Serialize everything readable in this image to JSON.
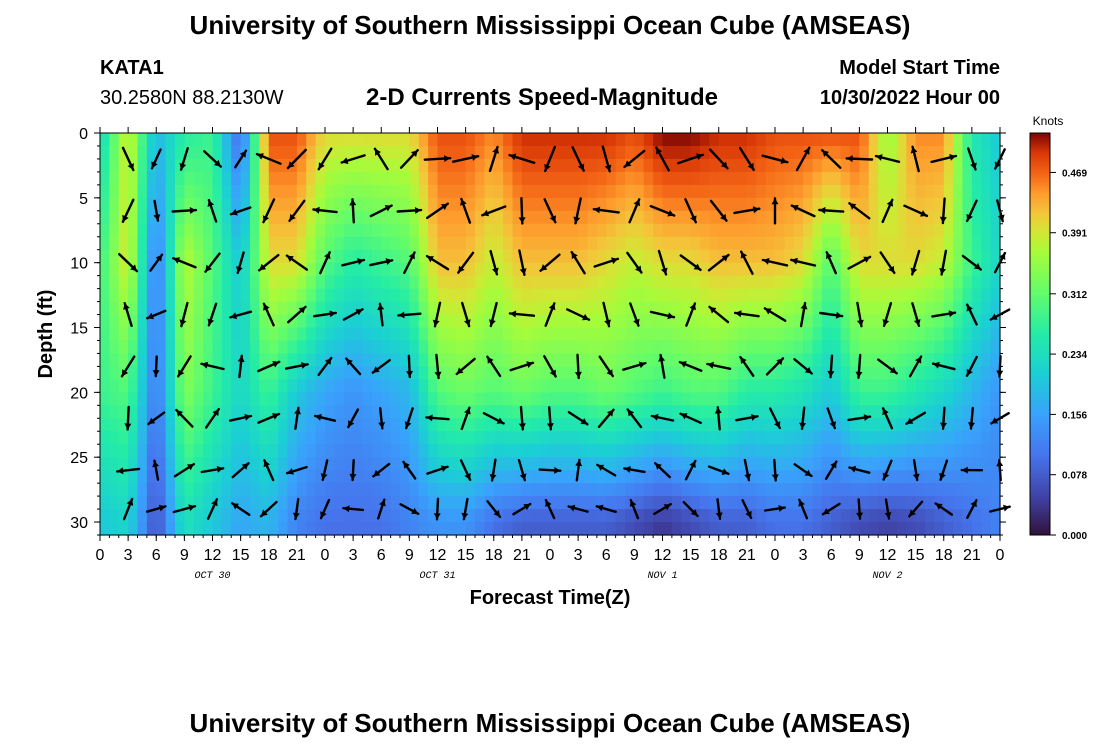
{
  "header": {
    "title": "University of Southern Mississippi Ocean Cube (AMSEAS)",
    "station_id": "KATA1",
    "station_coords": "30.2580N  88.2130W",
    "subtitle": "2-D Currents Speed-Magnitude",
    "model_start_label": "Model Start Time",
    "model_start_value": "10/30/2022 Hour 00"
  },
  "footer": {
    "title": "University of Southern Mississippi Ocean Cube (AMSEAS)"
  },
  "chart_data": {
    "type": "heatmap",
    "title": "2-D Currents Speed-Magnitude",
    "xlabel": "Forecast Time(Z)",
    "ylabel": "Depth (ft)",
    "xlim": [
      0,
      96
    ],
    "ylim": [
      31,
      0
    ],
    "x_tick_labels": [
      "0",
      "3",
      "6",
      "9",
      "12",
      "15",
      "18",
      "21",
      "0",
      "3",
      "6",
      "9",
      "12",
      "15",
      "18",
      "21",
      "0",
      "3",
      "6",
      "9",
      "12",
      "15",
      "18",
      "21",
      "0",
      "3",
      "6",
      "9",
      "12",
      "15",
      "18",
      "21",
      "0"
    ],
    "y_ticks": [
      0,
      5,
      10,
      15,
      20,
      25,
      30
    ],
    "y_tick_labels": [
      "0",
      "5",
      "10",
      "15",
      "20",
      "25",
      "30"
    ],
    "date_labels": [
      {
        "text": "OCT 30",
        "hour": 12
      },
      {
        "text": "OCT 31",
        "hour": 36
      },
      {
        "text": "NOV 1",
        "hour": 60
      },
      {
        "text": "NOV 2",
        "hour": 84
      }
    ],
    "colorbar": {
      "label": "Knots",
      "min": 0.0,
      "max": 0.52,
      "ticks": [
        0.0,
        0.078,
        0.156,
        0.234,
        0.312,
        0.391,
        0.469
      ],
      "tick_labels": [
        "0.000",
        "0.078",
        "0.156",
        "0.234",
        "0.312",
        "0.391",
        "0.469"
      ]
    },
    "speed_profiles": {
      "time_hours": [
        0,
        3,
        6,
        9,
        12,
        15,
        18,
        21,
        24,
        27,
        30,
        33,
        36,
        39,
        42,
        45,
        48,
        51,
        54,
        57,
        60,
        63,
        66,
        69,
        72,
        75,
        78,
        81,
        84,
        87,
        90,
        93,
        96
      ],
      "depth_ft": [
        0,
        10,
        20,
        30
      ],
      "speed_knots": [
        [
          0.22,
          0.4,
          0.18,
          0.26,
          0.28,
          0.08,
          0.48,
          0.48,
          0.4,
          0.4,
          0.4,
          0.4,
          0.48,
          0.48,
          0.45,
          0.5,
          0.5,
          0.5,
          0.5,
          0.48,
          0.52,
          0.52,
          0.5,
          0.5,
          0.48,
          0.48,
          0.48,
          0.48,
          0.35,
          0.45,
          0.45,
          0.25,
          0.2
        ],
        [
          0.28,
          0.4,
          0.1,
          0.38,
          0.3,
          0.2,
          0.4,
          0.4,
          0.3,
          0.26,
          0.28,
          0.3,
          0.42,
          0.42,
          0.38,
          0.42,
          0.42,
          0.42,
          0.4,
          0.38,
          0.4,
          0.4,
          0.42,
          0.42,
          0.42,
          0.4,
          0.3,
          0.4,
          0.4,
          0.4,
          0.38,
          0.28,
          0.22
        ],
        [
          0.28,
          0.3,
          0.1,
          0.34,
          0.28,
          0.22,
          0.28,
          0.2,
          0.16,
          0.14,
          0.16,
          0.18,
          0.3,
          0.32,
          0.3,
          0.32,
          0.3,
          0.3,
          0.32,
          0.3,
          0.28,
          0.3,
          0.3,
          0.26,
          0.26,
          0.24,
          0.2,
          0.28,
          0.28,
          0.25,
          0.22,
          0.18,
          0.14
        ],
        [
          0.2,
          0.22,
          0.06,
          0.24,
          0.2,
          0.16,
          0.18,
          0.12,
          0.1,
          0.1,
          0.1,
          0.12,
          0.14,
          0.14,
          0.1,
          0.08,
          0.08,
          0.08,
          0.08,
          0.06,
          0.04,
          0.06,
          0.08,
          0.08,
          0.1,
          0.1,
          0.08,
          0.06,
          0.05,
          0.06,
          0.08,
          0.1,
          0.12
        ]
      ]
    }
  }
}
